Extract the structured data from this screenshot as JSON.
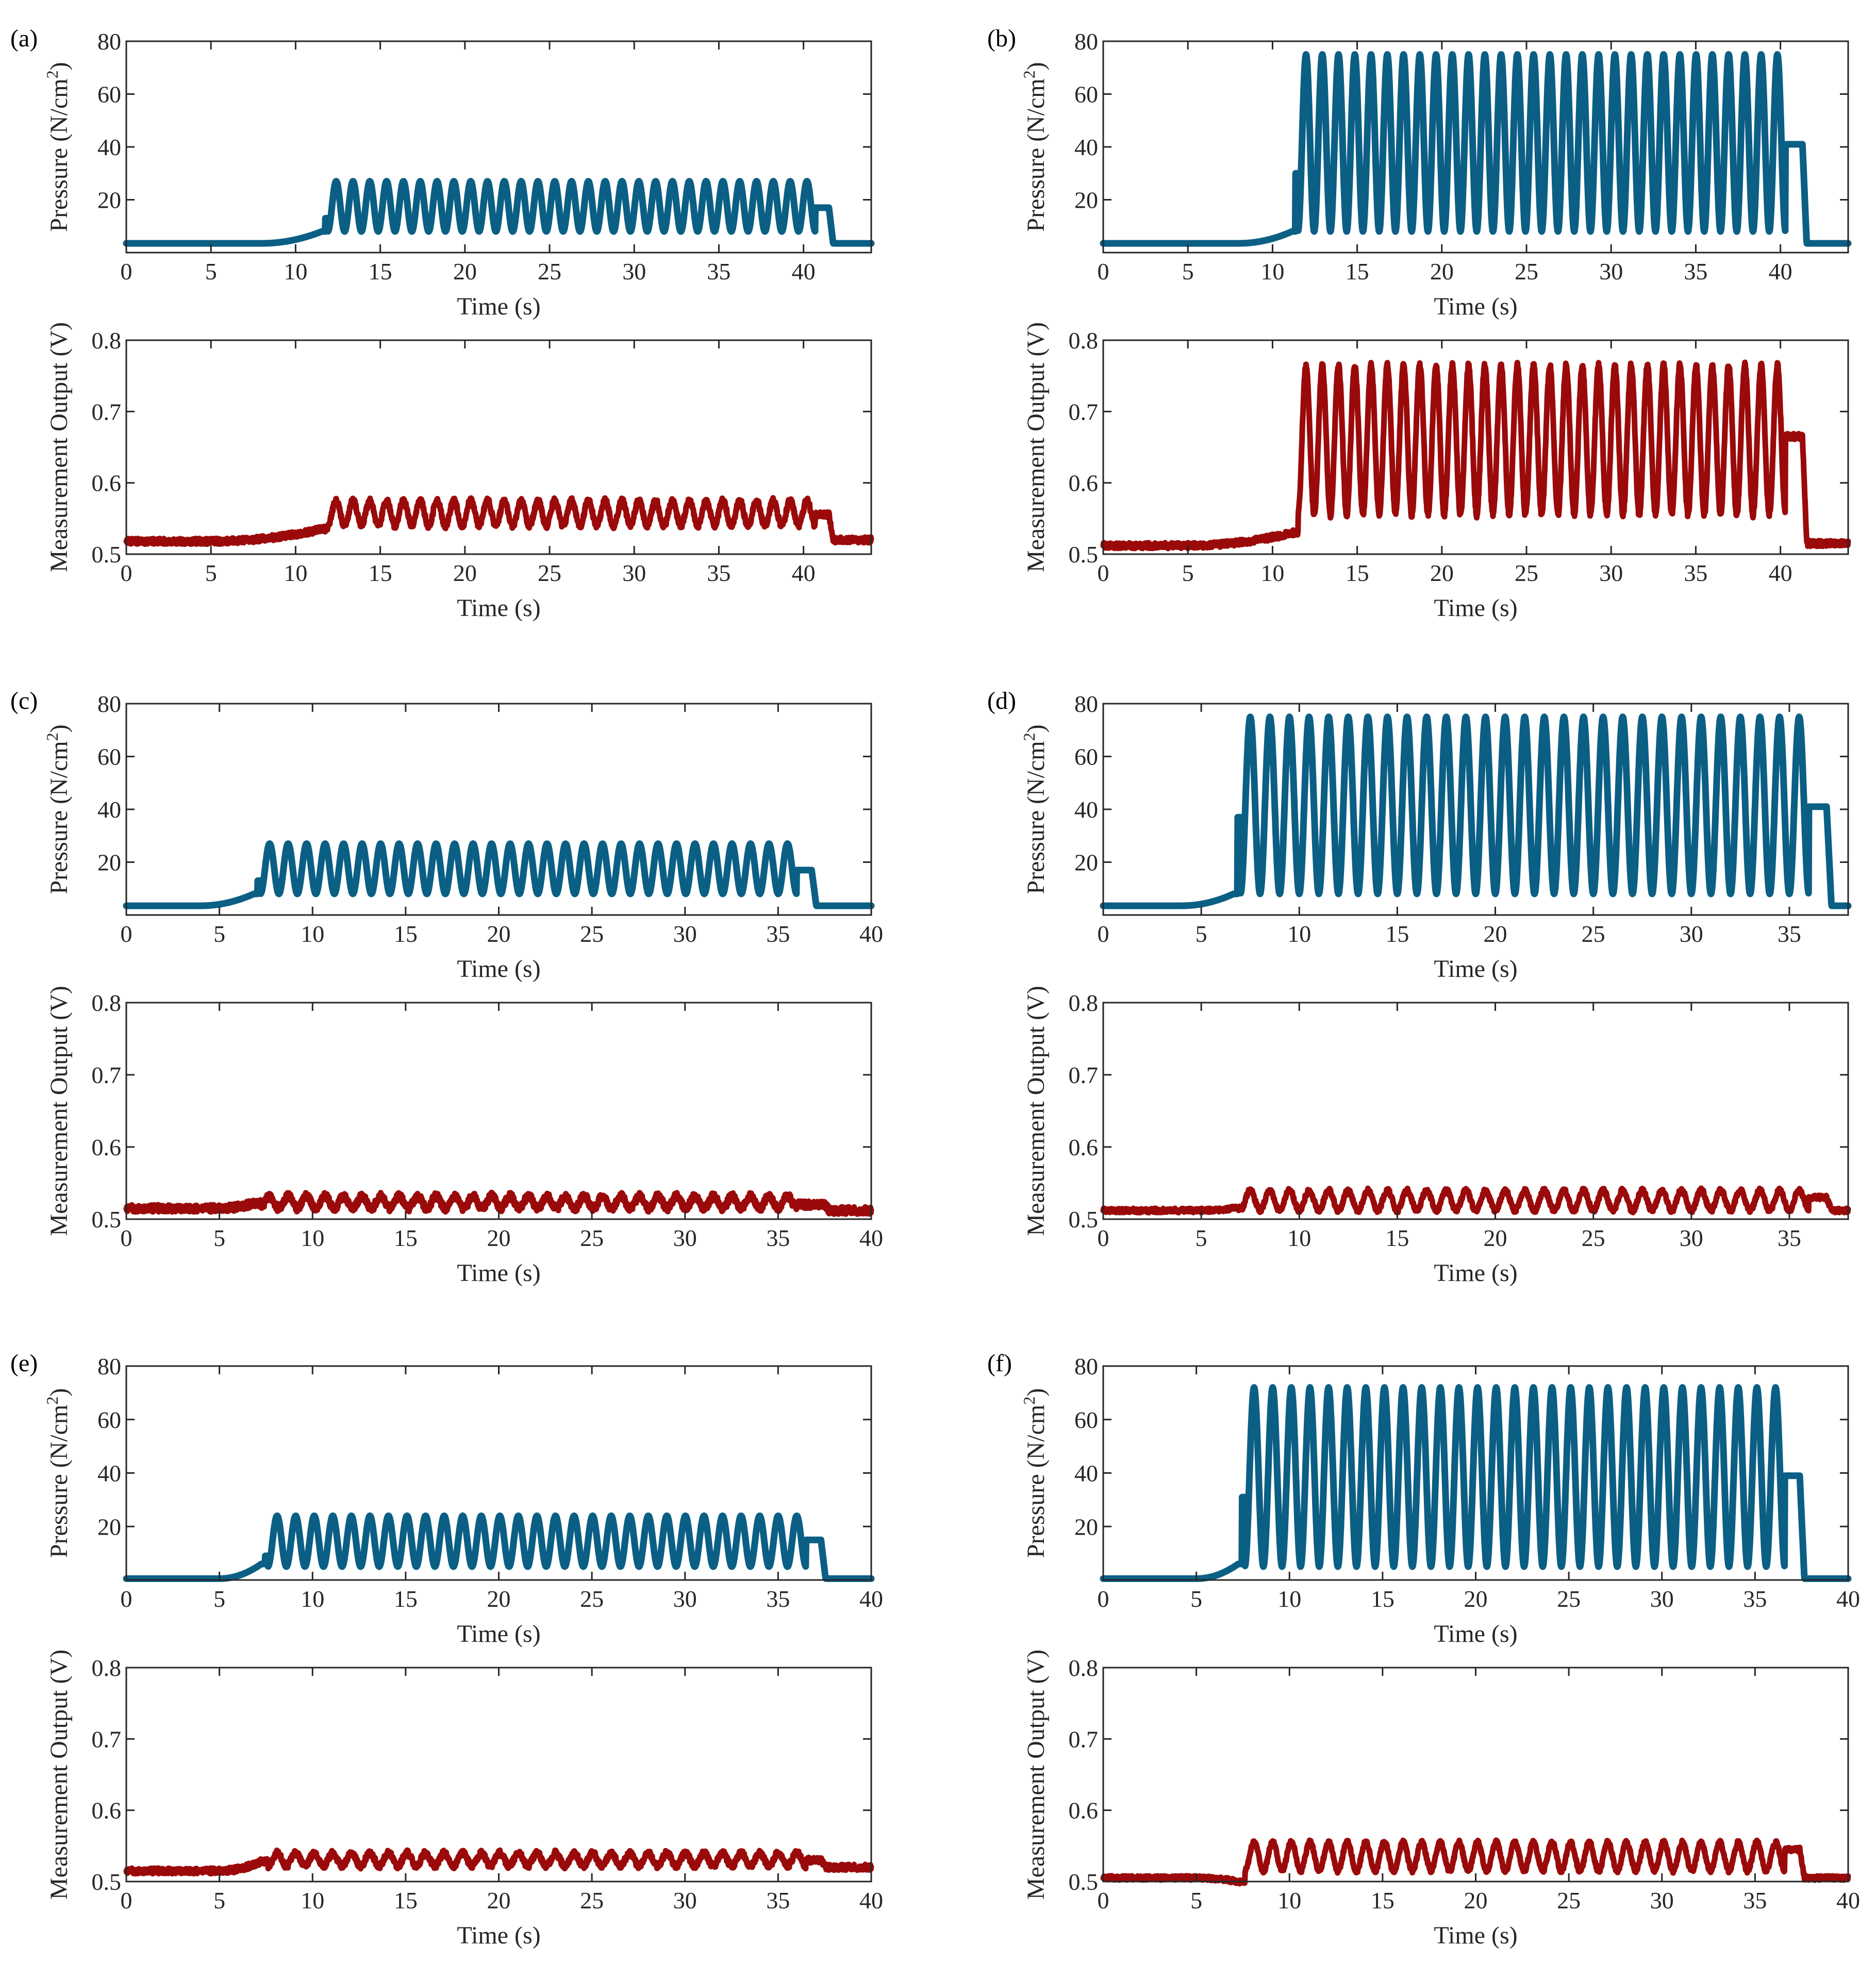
{
  "figure": {
    "colors": {
      "pressure": "#0b5f84",
      "output": "#9b0a0a",
      "axis": "#262626"
    }
  },
  "chart_data": [
    {
      "panel": "(a)",
      "time_label": "Time (s)",
      "top": {
        "type": "line",
        "ylabel": "Pressure (N/cm²)",
        "ylim": [
          0,
          80
        ],
        "yticks": [
          20,
          40,
          60,
          80
        ],
        "xlabel": "Time (s)",
        "xlim": [
          0,
          44
        ],
        "xticks": [
          0,
          5,
          10,
          15,
          20,
          25,
          30,
          35,
          40
        ],
        "series": [
          {
            "name": "Pressure",
            "baseline": 3.5,
            "ramp_start": 8,
            "ramp_value": 8,
            "first_spike": 13,
            "osc_start": 11.9,
            "osc_end": 40.7,
            "cycles": 29,
            "max": 27,
            "min": 8,
            "plateau": 17,
            "plateau_end": 41.5,
            "end_value": 3.5
          }
        ]
      },
      "bottom": {
        "type": "line",
        "ylabel": "Measurement Output (V)",
        "ylim": [
          0.5,
          0.8
        ],
        "yticks": [
          0.5,
          0.6,
          0.7,
          0.8
        ],
        "xlabel": "Time (s)",
        "xlim": [
          0,
          44
        ],
        "xticks": [
          0,
          5,
          10,
          15,
          20,
          25,
          30,
          35,
          40
        ],
        "series": [
          {
            "name": "Measurement Output",
            "baseline": 0.518,
            "ramp_value": 0.535,
            "osc_start": 11.9,
            "osc_end": 40.7,
            "cycles": 29,
            "max": 0.575,
            "min": 0.54,
            "plateau": 0.555,
            "plateau_end": 41.5,
            "end_value": 0.52,
            "noise": 0.004
          }
        ]
      }
    },
    {
      "panel": "(b)",
      "time_label": "Time (s)",
      "top": {
        "type": "line",
        "ylabel": "Pressure (N/cm²)",
        "ylim": [
          0,
          80
        ],
        "yticks": [
          20,
          40,
          60,
          80
        ],
        "xlabel": "Time (s)",
        "xlim": [
          0,
          44
        ],
        "xticks": [
          0,
          5,
          10,
          15,
          20,
          25,
          30,
          35,
          40
        ],
        "series": [
          {
            "name": "Pressure",
            "baseline": 3.5,
            "ramp_start": 8,
            "ramp_value": 8,
            "first_spike": 30,
            "osc_start": 11.5,
            "osc_end": 40.3,
            "cycles": 30,
            "max": 75,
            "min": 8,
            "plateau": 41,
            "plateau_end": 41.3,
            "end_value": 3.5
          }
        ]
      },
      "bottom": {
        "type": "line",
        "ylabel": "Measurement Output (V)",
        "ylim": [
          0.5,
          0.8
        ],
        "yticks": [
          0.5,
          0.6,
          0.7,
          0.8
        ],
        "xlabel": "Time (s)",
        "xlim": [
          0,
          44
        ],
        "xticks": [
          0,
          5,
          10,
          15,
          20,
          25,
          30,
          35,
          40
        ],
        "series": [
          {
            "name": "Measurement Output",
            "baseline": 0.512,
            "ramp_value": 0.53,
            "osc_start": 11.5,
            "osc_end": 40.3,
            "cycles": 30,
            "max": 0.765,
            "min": 0.555,
            "plateau": 0.665,
            "plateau_end": 41.3,
            "end_value": 0.515,
            "noise": 0.004
          }
        ]
      }
    },
    {
      "panel": "(c)",
      "time_label": "Time (s)",
      "top": {
        "type": "line",
        "ylabel": "Pressure (N/cm²)",
        "ylim": [
          0,
          80
        ],
        "yticks": [
          20,
          40,
          60,
          80
        ],
        "xlabel": "Time (s)",
        "xlim": [
          0,
          40
        ],
        "xticks": [
          0,
          5,
          10,
          15,
          20,
          25,
          30,
          35,
          40
        ],
        "series": [
          {
            "name": "Pressure",
            "baseline": 3.5,
            "ramp_start": 4,
            "ramp_value": 8,
            "first_spike": 13,
            "osc_start": 7.2,
            "osc_end": 36.0,
            "cycles": 29,
            "max": 27,
            "min": 8,
            "plateau": 17,
            "plateau_end": 36.8,
            "end_value": 3.5
          }
        ]
      },
      "bottom": {
        "type": "line",
        "ylabel": "Measurement Output (V)",
        "ylim": [
          0.5,
          0.8
        ],
        "yticks": [
          0.5,
          0.6,
          0.7,
          0.8
        ],
        "xlabel": "Time (s)",
        "xlim": [
          0,
          40
        ],
        "xticks": [
          0,
          5,
          10,
          15,
          20,
          25,
          30,
          35,
          40
        ],
        "series": [
          {
            "name": "Measurement Output",
            "baseline": 0.515,
            "ramp_value": 0.522,
            "osc_start": 7.2,
            "osc_end": 36.0,
            "cycles": 29,
            "max": 0.532,
            "min": 0.515,
            "plateau": 0.52,
            "plateau_end": 37.5,
            "end_value": 0.512,
            "noise": 0.005
          }
        ]
      }
    },
    {
      "panel": "(d)",
      "time_label": "Time (s)",
      "top": {
        "type": "line",
        "ylabel": "Pressure (N/cm²)",
        "ylim": [
          0,
          80
        ],
        "yticks": [
          20,
          40,
          60,
          80
        ],
        "xlabel": "Time (s)",
        "xlim": [
          0,
          38
        ],
        "xticks": [
          0,
          5,
          10,
          15,
          20,
          25,
          30,
          35
        ],
        "series": [
          {
            "name": "Pressure",
            "baseline": 3.5,
            "ramp_start": 4,
            "ramp_value": 8,
            "first_spike": 37,
            "osc_start": 7.0,
            "osc_end": 36.0,
            "cycles": 29,
            "max": 75,
            "min": 8,
            "plateau": 41,
            "plateau_end": 36.9,
            "end_value": 3.5
          }
        ]
      },
      "bottom": {
        "type": "line",
        "ylabel": "Measurement Output (V)",
        "ylim": [
          0.5,
          0.8
        ],
        "yticks": [
          0.5,
          0.6,
          0.7,
          0.8
        ],
        "xlabel": "Time (s)",
        "xlim": [
          0,
          38
        ],
        "xticks": [
          0,
          5,
          10,
          15,
          20,
          25,
          30,
          35
        ],
        "series": [
          {
            "name": "Measurement Output",
            "baseline": 0.512,
            "ramp_value": 0.515,
            "osc_start": 7.0,
            "osc_end": 36.0,
            "cycles": 29,
            "max": 0.54,
            "min": 0.512,
            "plateau": 0.53,
            "plateau_end": 36.9,
            "end_value": 0.512,
            "noise": 0.003
          }
        ]
      }
    },
    {
      "panel": "(e)",
      "time_label": "Time (s)",
      "top": {
        "type": "line",
        "ylabel": "Pressure (N/cm²)",
        "ylim": [
          0,
          80
        ],
        "yticks": [
          20,
          40,
          60,
          80
        ],
        "xlabel": "Time (s)",
        "xlim": [
          0,
          40
        ],
        "xticks": [
          0,
          5,
          10,
          15,
          20,
          25,
          30,
          35,
          40
        ],
        "series": [
          {
            "name": "Pressure",
            "baseline": 0.5,
            "ramp_start": 5,
            "ramp_value": 6,
            "first_spike": 9,
            "osc_start": 7.6,
            "osc_end": 36.5,
            "cycles": 29,
            "max": 24,
            "min": 5,
            "plateau": 15,
            "plateau_end": 37.3,
            "end_value": 0.5
          }
        ]
      },
      "bottom": {
        "type": "line",
        "ylabel": "Measurement Output (V)",
        "ylim": [
          0.5,
          0.8
        ],
        "yticks": [
          0.5,
          0.6,
          0.7,
          0.8
        ],
        "xlabel": "Time (s)",
        "xlim": [
          0,
          40
        ],
        "xticks": [
          0,
          5,
          10,
          15,
          20,
          25,
          30,
          35,
          40
        ],
        "series": [
          {
            "name": "Measurement Output",
            "baseline": 0.515,
            "ramp_value": 0.528,
            "osc_start": 7.6,
            "osc_end": 36.5,
            "cycles": 29,
            "max": 0.54,
            "min": 0.522,
            "plateau": 0.53,
            "plateau_end": 37.3,
            "end_value": 0.52,
            "noise": 0.004
          }
        ]
      }
    },
    {
      "panel": "(f)",
      "time_label": "Time (s)",
      "top": {
        "type": "line",
        "ylabel": "Pressure (N/cm²)",
        "ylim": [
          0,
          80
        ],
        "yticks": [
          20,
          40,
          60,
          80
        ],
        "xlabel": "Time (s)",
        "xlim": [
          0,
          40
        ],
        "xticks": [
          0,
          5,
          10,
          15,
          20,
          25,
          30,
          35,
          40
        ],
        "series": [
          {
            "name": "Pressure",
            "baseline": 0.5,
            "ramp_start": 5,
            "ramp_value": 6,
            "first_spike": 31,
            "osc_start": 7.6,
            "osc_end": 36.6,
            "cycles": 29,
            "max": 72,
            "min": 5,
            "plateau": 39,
            "plateau_end": 37.4,
            "end_value": 0.5
          }
        ]
      },
      "bottom": {
        "type": "line",
        "ylabel": "Measurement Output (V)",
        "ylim": [
          0.5,
          0.8
        ],
        "yticks": [
          0.5,
          0.6,
          0.7,
          0.8
        ],
        "xlabel": "Time (s)",
        "xlim": [
          0,
          40
        ],
        "xticks": [
          0,
          5,
          10,
          15,
          20,
          25,
          30,
          35,
          40
        ],
        "series": [
          {
            "name": "Measurement Output",
            "baseline": 0.505,
            "ramp_value": 0.5,
            "osc_start": 7.6,
            "osc_end": 36.6,
            "cycles": 29,
            "max": 0.555,
            "min": 0.515,
            "plateau": 0.545,
            "plateau_end": 37.4,
            "end_value": 0.505,
            "noise": 0.003
          }
        ]
      }
    }
  ]
}
